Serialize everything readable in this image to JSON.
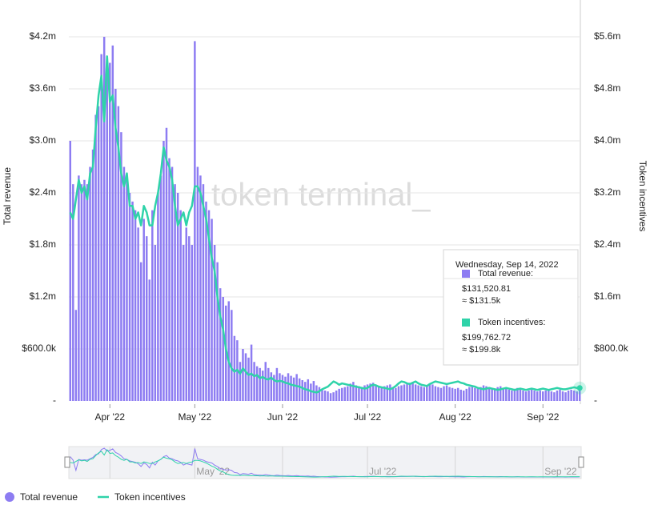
{
  "chart_data": {
    "type": "bar-line",
    "watermark": "token terminal_",
    "y_label": "Total revenue",
    "y2_label": "Token incentives",
    "categories": [
      null,
      null,
      null,
      null,
      null,
      null,
      null,
      null,
      null,
      null,
      null,
      null,
      null,
      null,
      "Apr '22",
      null,
      null,
      null,
      null,
      null,
      null,
      null,
      null,
      null,
      null,
      null,
      null,
      null,
      null,
      null,
      null,
      null,
      null,
      null,
      null,
      null,
      null,
      null,
      null,
      null,
      null,
      null,
      null,
      null,
      "May '22",
      null,
      null,
      null,
      null,
      null,
      null,
      null,
      null,
      null,
      null,
      null,
      null,
      null,
      null,
      null,
      null,
      null,
      null,
      null,
      null,
      null,
      null,
      null,
      null,
      null,
      null,
      null,
      null,
      null,
      null,
      "Jun '22",
      null,
      null,
      null,
      null,
      null,
      null,
      null,
      null,
      null,
      null,
      null,
      null,
      null,
      null,
      null,
      null,
      null,
      null,
      null,
      null,
      null,
      null,
      null,
      null,
      null,
      null,
      null,
      null,
      null,
      "Jul '22",
      null,
      null,
      null,
      null,
      null,
      null,
      null,
      null,
      null,
      null,
      null,
      null,
      null,
      null,
      null,
      null,
      null,
      null,
      null,
      null,
      null,
      null,
      null,
      null,
      null,
      null,
      null,
      null,
      null,
      null,
      "Aug '22",
      null,
      null,
      null,
      null,
      null,
      null,
      null,
      null,
      null,
      null,
      null,
      null,
      null,
      null,
      null,
      null,
      null,
      null,
      null,
      null,
      null,
      null,
      null,
      null,
      null,
      null,
      null,
      null,
      null,
      null,
      "Sep '22",
      null,
      null,
      null,
      null,
      null,
      null,
      null,
      null,
      null,
      null,
      null,
      null,
      null
    ],
    "series": [
      {
        "name": "Total revenue",
        "kind": "bar",
        "color": "#8d7cf2",
        "values": [
          3000000,
          2500000,
          1050000,
          2600000,
          2500000,
          2550000,
          2500000,
          2700000,
          2900000,
          3300000,
          3400000,
          4000000,
          4200000,
          3800000,
          3900000,
          4100000,
          3600000,
          3400000,
          3100000,
          2700000,
          2600000,
          2400000,
          2300000,
          2200000,
          2000000,
          1600000,
          2100000,
          1900000,
          1400000,
          2200000,
          1800000,
          2400000,
          2600000,
          3000000,
          3150000,
          2800000,
          2700000,
          2500000,
          2400000,
          2200000,
          1800000,
          2000000,
          1900000,
          1800000,
          4150000,
          2700000,
          2600000,
          2500000,
          2300000,
          2200000,
          2100000,
          1800000,
          1600000,
          1300000,
          1200000,
          1100000,
          1150000,
          1050000,
          750000,
          700000,
          450000,
          600000,
          550000,
          500000,
          650000,
          450000,
          400000,
          380000,
          350000,
          450000,
          380000,
          330000,
          300000,
          380000,
          320000,
          300000,
          280000,
          320000,
          290000,
          270000,
          310000,
          260000,
          240000,
          220000,
          250000,
          200000,
          230000,
          180000,
          160000,
          140000,
          120000,
          110000,
          90000,
          100000,
          120000,
          140000,
          150000,
          160000,
          170000,
          200000,
          220000,
          180000,
          170000,
          160000,
          180000,
          190000,
          200000,
          210000,
          180000,
          170000,
          160000,
          170000,
          180000,
          190000,
          160000,
          150000,
          170000,
          180000,
          190000,
          200000,
          210000,
          220000,
          190000,
          180000,
          170000,
          160000,
          180000,
          200000,
          190000,
          170000,
          160000,
          150000,
          170000,
          180000,
          160000,
          150000,
          140000,
          150000,
          130000,
          120000,
          140000,
          160000,
          170000,
          150000,
          140000,
          160000,
          180000,
          170000,
          160000,
          150000,
          140000,
          160000,
          170000,
          150000,
          140000,
          130000,
          120000,
          140000,
          150000,
          130000,
          120000,
          110000,
          120000,
          130000,
          120000,
          110000,
          120000,
          110000,
          120000,
          130000,
          110000,
          100000,
          120000,
          130000,
          110000,
          100000,
          120000,
          130000,
          120000,
          110000,
          131520.81
        ]
      },
      {
        "name": "Token incentives",
        "kind": "line",
        "axis": "y2",
        "color": "#2fd3a9",
        "values": [
          2900000,
          2800000,
          3100000,
          3400000,
          3200000,
          3300000,
          3100000,
          3500000,
          3600000,
          4200000,
          4700000,
          5000000,
          4300000,
          5300000,
          4600000,
          4700000,
          4200000,
          3900000,
          3500000,
          3300000,
          3500000,
          3000000,
          3000000,
          2800000,
          2900000,
          2700000,
          3000000,
          2900000,
          2700000,
          2700000,
          3000000,
          3200000,
          3500000,
          3900000,
          3700000,
          3600000,
          3400000,
          3000000,
          2700000,
          2800000,
          2900000,
          2700000,
          2900000,
          3000000,
          3300000,
          3300000,
          3200000,
          3000000,
          2800000,
          2500000,
          2200000,
          2000000,
          1600000,
          1300000,
          1100000,
          800000,
          600000,
          500000,
          450000,
          480000,
          420000,
          500000,
          450000,
          400000,
          420000,
          380000,
          400000,
          350000,
          370000,
          340000,
          330000,
          360000,
          320000,
          300000,
          310000,
          300000,
          280000,
          270000,
          250000,
          240000,
          230000,
          220000,
          200000,
          180000,
          170000,
          150000,
          140000,
          130000,
          150000,
          180000,
          200000,
          220000,
          260000,
          300000,
          280000,
          250000,
          270000,
          260000,
          250000,
          240000,
          230000,
          220000,
          210000,
          200000,
          190000,
          200000,
          230000,
          250000,
          240000,
          220000,
          210000,
          200000,
          190000,
          180000,
          200000,
          230000,
          270000,
          300000,
          290000,
          270000,
          260000,
          280000,
          300000,
          270000,
          250000,
          240000,
          230000,
          260000,
          280000,
          300000,
          290000,
          280000,
          270000,
          260000,
          270000,
          280000,
          290000,
          300000,
          280000,
          270000,
          250000,
          240000,
          230000,
          220000,
          200000,
          190000,
          180000,
          190000,
          200000,
          190000,
          180000,
          170000,
          180000,
          190000,
          200000,
          190000,
          180000,
          170000,
          180000,
          190000,
          180000,
          170000,
          180000,
          190000,
          180000,
          170000,
          180000,
          190000,
          180000,
          170000,
          180000,
          190000,
          200000,
          190000,
          180000,
          180000,
          190000,
          200000,
          210000,
          200000,
          199762.72
        ]
      }
    ],
    "ylim": [
      0,
      4200000
    ],
    "yticks": [
      {
        "value": 0,
        "label": "-"
      },
      {
        "value": 600000,
        "label": "$600.0k"
      },
      {
        "value": 1200000,
        "label": "$1.2m"
      },
      {
        "value": 1800000,
        "label": "$1.8m"
      },
      {
        "value": 2400000,
        "label": "$2.4m"
      },
      {
        "value": 3000000,
        "label": "$3.0m"
      },
      {
        "value": 3600000,
        "label": "$3.6m"
      },
      {
        "value": 4200000,
        "label": "$4.2m"
      }
    ],
    "y2lim": [
      0,
      5600000
    ],
    "y2ticks": [
      {
        "value": 0,
        "label": "-"
      },
      {
        "value": 800000,
        "label": "$800.0k"
      },
      {
        "value": 1600000,
        "label": "$1.6m"
      },
      {
        "value": 2400000,
        "label": "$2.4m"
      },
      {
        "value": 3200000,
        "label": "$3.2m"
      },
      {
        "value": 4000000,
        "label": "$4.0m"
      },
      {
        "value": 4800000,
        "label": "$4.8m"
      },
      {
        "value": 5600000,
        "label": "$5.6m"
      }
    ],
    "grid": true,
    "tooltip": {
      "date": "Wednesday, Sep 14, 2022",
      "items": [
        {
          "label": "Total revenue:",
          "value": "$131,520.81",
          "approx": "≈ $131.5k"
        },
        {
          "label": "Token incentives:",
          "value": "$199,762.72",
          "approx": "≈ $199.8k"
        }
      ]
    }
  }
}
